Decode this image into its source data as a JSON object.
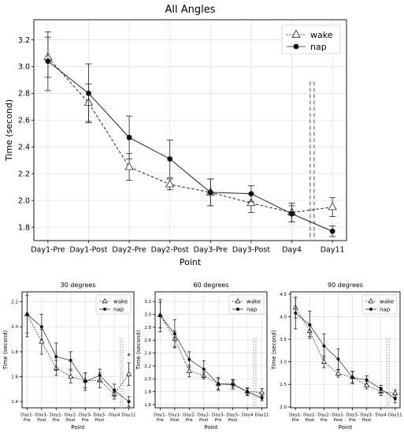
{
  "chart_data": [
    {
      "type": "line",
      "title": "All Angles",
      "xlabel": "Point",
      "ylabel": "Time (second)",
      "categories": [
        "Day1-Pre",
        "Day1-Post",
        "Day2-Pre",
        "Day2-Post",
        "Day3-Pre",
        "Day3-Post",
        "Day4",
        "Day11"
      ],
      "ylim": [
        1.7,
        3.35
      ],
      "yticks": [
        1.8,
        2.0,
        2.2,
        2.4,
        2.6,
        2.8,
        3.0,
        3.2
      ],
      "grid": true,
      "legend_position": "top-right",
      "gap_marker_after": "Day4",
      "series": [
        {
          "name": "wake",
          "marker": "open-triangle",
          "line": "dashed",
          "values": [
            3.07,
            2.73,
            2.25,
            2.12,
            2.06,
            1.98,
            1.91,
            1.95
          ],
          "errors": [
            0.15,
            0.14,
            0.1,
            0.04,
            0.1,
            0.07,
            0.07,
            0.07
          ]
        },
        {
          "name": "nap",
          "marker": "filled-circle",
          "line": "solid",
          "values": [
            3.04,
            2.8,
            2.47,
            2.31,
            2.06,
            2.05,
            1.9,
            1.77
          ],
          "errors": [
            0.22,
            0.22,
            0.16,
            0.14,
            0.1,
            0.06,
            0.06,
            0.04
          ]
        }
      ]
    },
    {
      "type": "line",
      "title": "30 degrees",
      "xlabel": "Point",
      "ylabel": "Time (second)",
      "categories": [
        "Day1-\nPre",
        "Day1-\nPost",
        "Day2-\nPre",
        "Day2-\nPost",
        "Day3-\nPre",
        "Day3-\nPost",
        "Day4",
        "Day11"
      ],
      "ylim": [
        1.35,
        2.28
      ],
      "yticks": [
        1.4,
        1.6,
        1.8,
        2.0,
        2.2
      ],
      "grid": true,
      "legend_position": "top-right",
      "gap_marker_after": "Day4",
      "annotation": "*",
      "series": [
        {
          "name": "wake",
          "marker": "open-triangle",
          "line": "dashed",
          "values": [
            2.1,
            1.88,
            1.67,
            1.6,
            1.57,
            1.57,
            1.46,
            1.62
          ],
          "errors": [
            0.15,
            0.1,
            0.06,
            0.05,
            0.06,
            0.06,
            0.04,
            0.09
          ]
        },
        {
          "name": "nap",
          "marker": "filled-circle",
          "line": "solid",
          "values": [
            2.1,
            2.0,
            1.76,
            1.73,
            1.56,
            1.61,
            1.49,
            1.4
          ],
          "errors": [
            0.18,
            0.1,
            0.11,
            0.07,
            0.07,
            0.05,
            0.05,
            0.04
          ]
        }
      ]
    },
    {
      "type": "line",
      "title": "60 degrees",
      "xlabel": "Point",
      "ylabel": "Time (second)",
      "categories": [
        "Day1-\nPre",
        "Day1-\nPost",
        "Day2-\nPre",
        "Day2-\nPost",
        "Day3-\nPre",
        "Day3-\nPost",
        "Day4",
        "Day11"
      ],
      "ylim": [
        1.55,
        3.35
      ],
      "yticks": [
        1.6,
        1.8,
        2.0,
        2.2,
        2.4,
        2.6,
        2.8,
        3.0,
        3.2
      ],
      "grid": true,
      "legend_position": "top-right",
      "gap_marker_after": "Day4",
      "series": [
        {
          "name": "wake",
          "marker": "open-triangle",
          "line": "dashed",
          "values": [
            2.99,
            2.62,
            2.12,
            2.05,
            1.92,
            1.93,
            1.8,
            1.79
          ],
          "errors": [
            0.2,
            0.12,
            0.09,
            0.05,
            0.1,
            0.06,
            0.06,
            0.06
          ]
        },
        {
          "name": "nap",
          "marker": "filled-circle",
          "line": "solid",
          "values": [
            2.98,
            2.7,
            2.3,
            2.15,
            1.92,
            1.91,
            1.8,
            1.7
          ],
          "errors": [
            0.25,
            0.22,
            0.12,
            0.13,
            0.08,
            0.07,
            0.05,
            0.04
          ]
        }
      ]
    },
    {
      "type": "line",
      "title": "90 degrees",
      "xlabel": "Point",
      "ylabel": "Time (second)",
      "categories": [
        "Day1-\nPre",
        "Day1-\nPost",
        "Day2-\nPre",
        "Day2-\nPost",
        "Day3-\nPre",
        "Day3-\nPost",
        "Day4",
        "Day11"
      ],
      "ylim": [
        1.98,
        4.55
      ],
      "yticks": [
        2.0,
        2.5,
        3.0,
        3.5,
        4.0,
        4.5
      ],
      "grid": true,
      "legend_position": "top-right",
      "gap_marker_after": "Day4",
      "series": [
        {
          "name": "wake",
          "marker": "open-triangle",
          "line": "dashed",
          "values": [
            4.2,
            3.68,
            3.0,
            2.74,
            2.66,
            2.48,
            2.34,
            2.3
          ],
          "errors": [
            0.23,
            0.12,
            0.13,
            0.08,
            0.12,
            0.08,
            0.09,
            0.08
          ]
        },
        {
          "name": "nap",
          "marker": "filled-circle",
          "line": "solid",
          "values": [
            4.08,
            3.82,
            3.35,
            3.06,
            2.65,
            2.6,
            2.4,
            2.18
          ],
          "errors": [
            0.35,
            0.3,
            0.27,
            0.23,
            0.14,
            0.09,
            0.08,
            0.09
          ]
        }
      ]
    }
  ]
}
